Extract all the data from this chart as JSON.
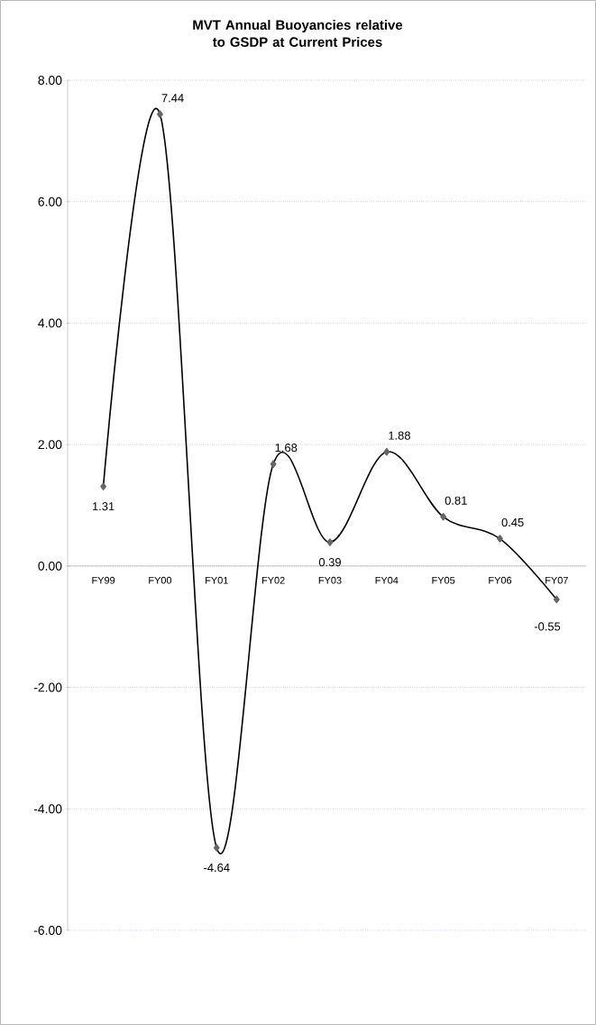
{
  "chart_data": {
    "type": "line",
    "title": "MVT Annual Buoyancies relative to GSDP at Current Prices",
    "categories": [
      "FY99",
      "FY00",
      "FY01",
      "FY02",
      "FY03",
      "FY04",
      "FY05",
      "FY06",
      "FY07"
    ],
    "series": [
      {
        "color": "#000000",
        "values": [
          1.31,
          7.44,
          -4.64,
          1.68,
          0.39,
          1.88,
          0.81,
          0.45,
          -0.55
        ]
      }
    ],
    "ylim": [
      -6,
      8
    ],
    "yticks": [
      {
        "value": -6,
        "label": "-6.00"
      },
      {
        "value": -4,
        "label": "-4.00"
      },
      {
        "value": -2,
        "label": "-2.00"
      },
      {
        "value": 0,
        "label": "0.00"
      },
      {
        "value": 2,
        "label": "2.00"
      },
      {
        "value": 4,
        "label": "4.00"
      },
      {
        "value": 6,
        "label": "6.00"
      },
      {
        "value": 8,
        "label": "8.00"
      }
    ],
    "grid": "y",
    "marker": "diamond",
    "line_style": "solid",
    "data_labels": true
  }
}
